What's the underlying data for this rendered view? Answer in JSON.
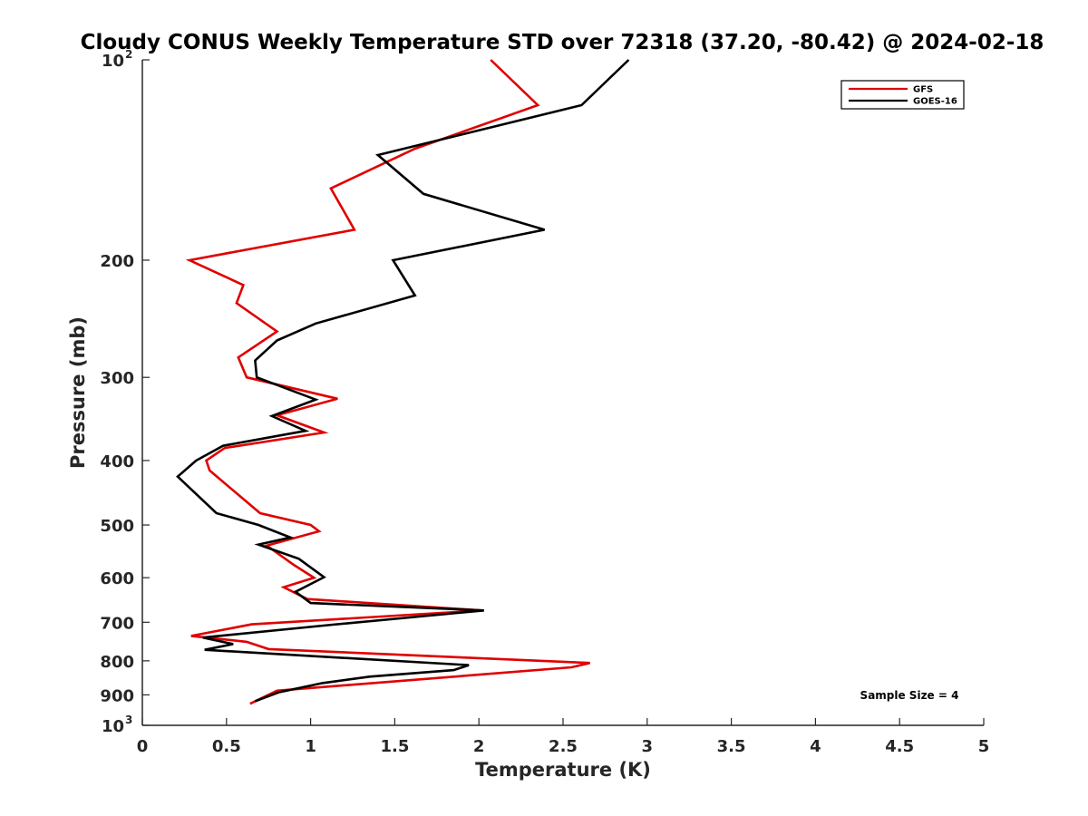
{
  "chart_data": {
    "type": "line",
    "title": "Cloudy CONUS Weekly Temperature STD over 72318 (37.20, -80.42) @ 2024-02-18",
    "xlabel": "Temperature (K)",
    "ylabel": "Pressure (mb)",
    "xlim": [
      0,
      5
    ],
    "ylim": [
      100,
      1000
    ],
    "y_scale": "log",
    "y_reversed": true,
    "x_ticks": [
      "0",
      "0.5",
      "1",
      "1.5",
      "2",
      "2.5",
      "3",
      "3.5",
      "4",
      "4.5",
      "5"
    ],
    "y_ticks": [
      {
        "value": 100,
        "label": "10",
        "sup": "2"
      },
      {
        "value": 200,
        "label": "200",
        "sup": ""
      },
      {
        "value": 300,
        "label": "300",
        "sup": ""
      },
      {
        "value": 400,
        "label": "400",
        "sup": ""
      },
      {
        "value": 500,
        "label": "500",
        "sup": ""
      },
      {
        "value": 600,
        "label": "600",
        "sup": ""
      },
      {
        "value": 700,
        "label": "700",
        "sup": ""
      },
      {
        "value": 800,
        "label": "800",
        "sup": ""
      },
      {
        "value": 900,
        "label": "900",
        "sup": ""
      },
      {
        "value": 1000,
        "label": "10",
        "sup": "3"
      }
    ],
    "grid": false,
    "legend_position": "top-right",
    "series": [
      {
        "name": "GFS",
        "color": "#e00000",
        "points": [
          [
            2.07,
            100
          ],
          [
            2.35,
            117
          ],
          [
            1.62,
            136
          ],
          [
            1.12,
            156
          ],
          [
            1.26,
            180
          ],
          [
            0.28,
            200
          ],
          [
            0.6,
            218
          ],
          [
            0.56,
            232
          ],
          [
            0.8,
            256
          ],
          [
            0.57,
            280
          ],
          [
            0.62,
            300
          ],
          [
            1.16,
            323
          ],
          [
            0.8,
            342
          ],
          [
            1.08,
            363
          ],
          [
            0.49,
            383
          ],
          [
            0.38,
            400
          ],
          [
            0.4,
            414
          ],
          [
            0.7,
            480
          ],
          [
            1.0,
            500
          ],
          [
            1.05,
            511
          ],
          [
            0.74,
            537
          ],
          [
            0.9,
            574
          ],
          [
            1.02,
            600
          ],
          [
            0.84,
            620
          ],
          [
            0.98,
            646
          ],
          [
            2.02,
            672
          ],
          [
            0.65,
            705
          ],
          [
            0.29,
            734
          ],
          [
            0.62,
            749
          ],
          [
            0.75,
            768
          ],
          [
            2.66,
            806
          ],
          [
            2.55,
            818
          ],
          [
            0.8,
            887
          ],
          [
            0.64,
            928
          ]
        ]
      },
      {
        "name": "GOES-16",
        "color": "#000000",
        "points": [
          [
            2.89,
            100
          ],
          [
            2.61,
            117
          ],
          [
            1.4,
            139
          ],
          [
            1.67,
            159
          ],
          [
            2.39,
            180
          ],
          [
            1.49,
            200
          ],
          [
            1.62,
            226
          ],
          [
            1.03,
            249
          ],
          [
            0.8,
            264
          ],
          [
            0.67,
            283
          ],
          [
            0.68,
            300
          ],
          [
            1.03,
            324
          ],
          [
            0.77,
            343
          ],
          [
            0.97,
            361
          ],
          [
            0.48,
            380
          ],
          [
            0.32,
            400
          ],
          [
            0.21,
            423
          ],
          [
            0.44,
            480
          ],
          [
            0.69,
            500
          ],
          [
            0.88,
            522
          ],
          [
            0.69,
            535
          ],
          [
            0.93,
            562
          ],
          [
            1.08,
            599
          ],
          [
            0.91,
            630
          ],
          [
            1.0,
            655
          ],
          [
            2.03,
            672
          ],
          [
            1.13,
            706
          ],
          [
            0.36,
            738
          ],
          [
            0.54,
            755
          ],
          [
            0.37,
            770
          ],
          [
            1.94,
            812
          ],
          [
            1.85,
            826
          ],
          [
            1.35,
            845
          ],
          [
            1.07,
            864
          ],
          [
            0.81,
            892
          ],
          [
            0.67,
            920
          ]
        ]
      }
    ],
    "annotation": "Sample Size = 4"
  }
}
